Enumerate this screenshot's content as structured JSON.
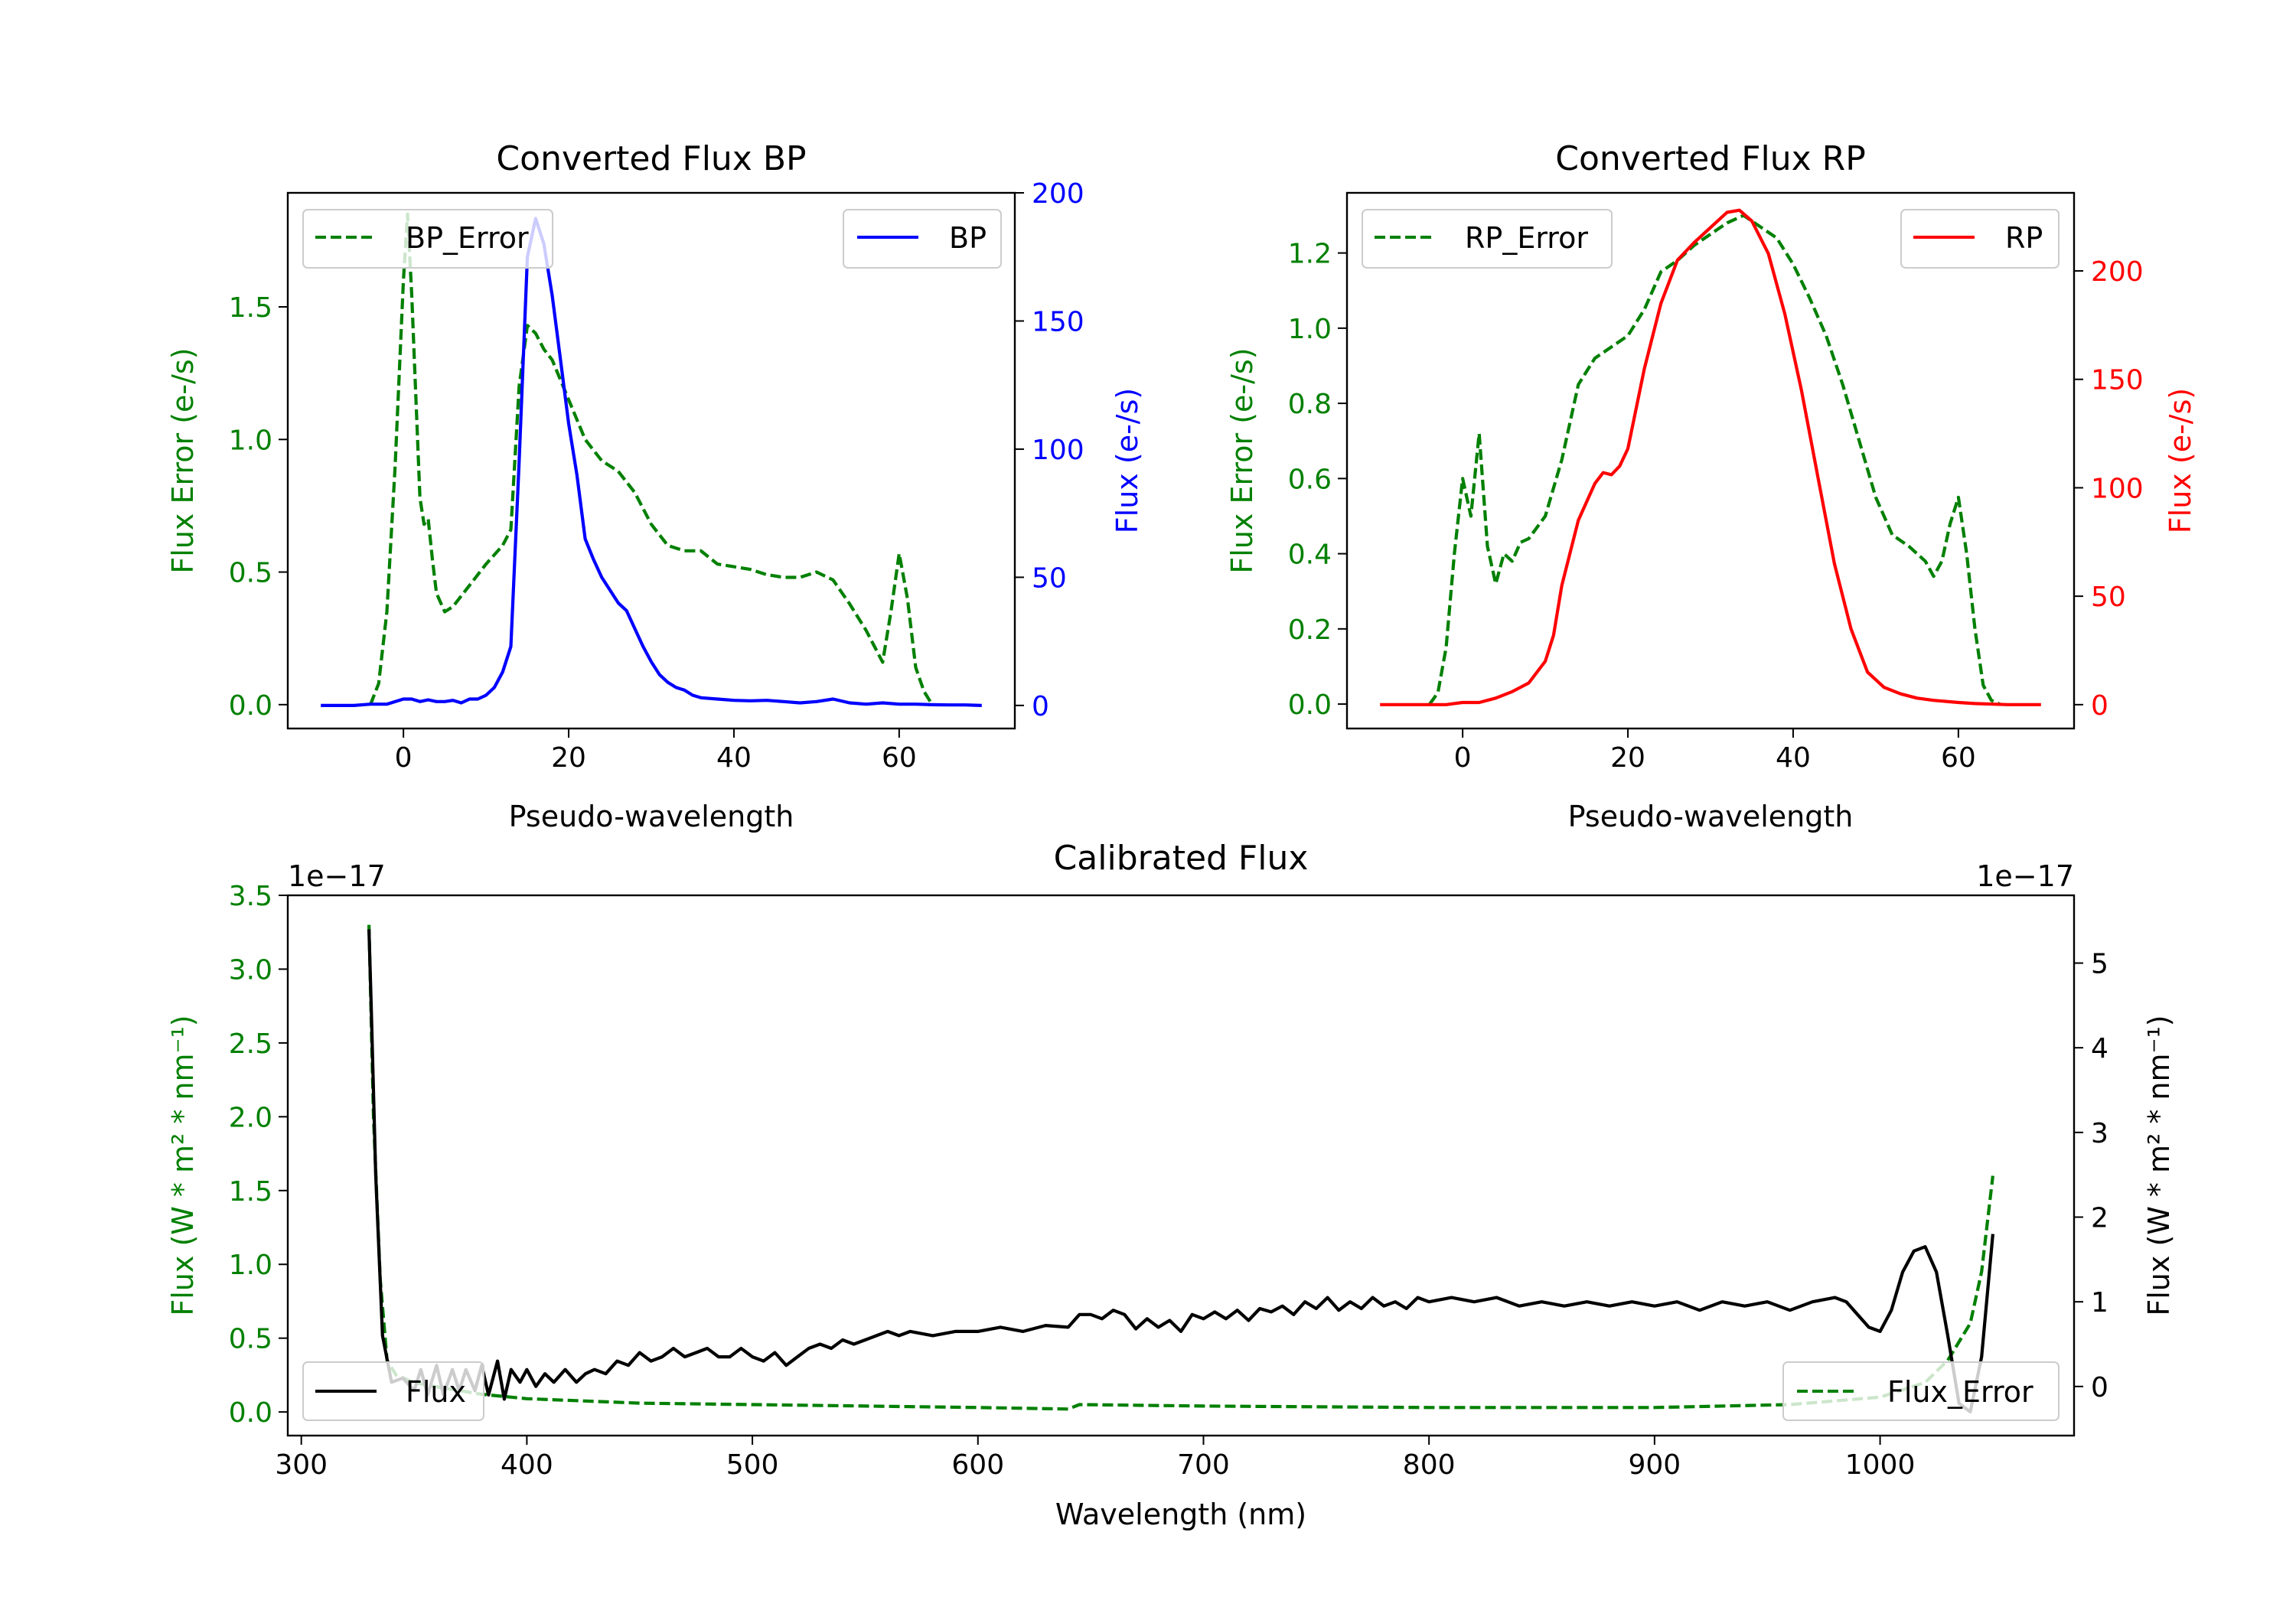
{
  "chart_data": [
    {
      "type": "line",
      "title": "Converted Flux BP",
      "xlabel": "Pseudo-wavelength",
      "xlim": [
        -14,
        74
      ],
      "xticks": [
        0,
        20,
        40,
        60
      ],
      "ylabel_left": "Flux Error (e-/s)",
      "ylim_left": [
        -0.09,
        1.93
      ],
      "yticks_left": [
        0.0,
        0.5,
        1.0,
        1.5
      ],
      "ylabel_right": "Flux (e-/s)",
      "ylim_right": [
        -9,
        200
      ],
      "yticks_right": [
        0,
        50,
        100,
        150,
        200
      ],
      "left_color": "#008000",
      "right_color": "#0000ff",
      "series": [
        {
          "name": "BP_Error",
          "axis": "left",
          "style": "dashed",
          "color": "#008000",
          "x": [
            -4,
            -3,
            -2,
            -1,
            0,
            0.5,
            1,
            2,
            2.5,
            3,
            3.5,
            4,
            5,
            6,
            8,
            10,
            12,
            13,
            14,
            15,
            16,
            17,
            18,
            20,
            22,
            24,
            26,
            28,
            30,
            32,
            34,
            36,
            38,
            40,
            42,
            44,
            46,
            48,
            50,
            52,
            54,
            56,
            57,
            58,
            59,
            60,
            61,
            62,
            63,
            64
          ],
          "values": [
            0.0,
            0.08,
            0.35,
            0.9,
            1.6,
            1.85,
            1.55,
            0.78,
            0.68,
            0.7,
            0.55,
            0.42,
            0.35,
            0.37,
            0.45,
            0.53,
            0.6,
            0.66,
            1.2,
            1.43,
            1.4,
            1.34,
            1.3,
            1.15,
            1.0,
            0.92,
            0.88,
            0.8,
            0.68,
            0.6,
            0.58,
            0.58,
            0.53,
            0.52,
            0.51,
            0.49,
            0.48,
            0.48,
            0.5,
            0.47,
            0.38,
            0.28,
            0.22,
            0.16,
            0.35,
            0.57,
            0.4,
            0.14,
            0.05,
            0.0
          ]
        },
        {
          "name": "BP",
          "axis": "right",
          "style": "solid",
          "color": "#0000ff",
          "x": [
            -10,
            -6,
            -4,
            -2,
            0,
            1,
            2,
            3,
            4,
            5,
            6,
            7,
            8,
            9,
            10,
            11,
            12,
            13,
            14,
            15,
            16,
            17,
            18,
            19,
            20,
            21,
            22,
            23,
            24,
            25,
            26,
            27,
            28,
            29,
            30,
            31,
            32,
            33,
            34,
            35,
            36,
            38,
            40,
            42,
            44,
            46,
            48,
            50,
            52,
            54,
            56,
            58,
            60,
            62,
            64,
            66,
            68,
            70
          ],
          "values": [
            0,
            0,
            0.5,
            0.5,
            2.5,
            2.5,
            1.5,
            2.2,
            1.5,
            1.5,
            2,
            1,
            2.5,
            2.5,
            4,
            7,
            13,
            23,
            95,
            175,
            190,
            180,
            160,
            135,
            110,
            90,
            65,
            57,
            50,
            45,
            40,
            37,
            30,
            23,
            17,
            12,
            9,
            7,
            6,
            4,
            3,
            2.5,
            2,
            1.8,
            2,
            1.5,
            1,
            1.5,
            2.5,
            1,
            0.5,
            1,
            0.5,
            0.5,
            0.3,
            0.2,
            0.2,
            0
          ]
        }
      ],
      "legend": [
        {
          "label": "BP_Error",
          "placement": "upper-left"
        },
        {
          "label": "BP",
          "placement": "upper-right"
        }
      ]
    },
    {
      "type": "line",
      "title": "Converted Flux RP",
      "xlabel": "Pseudo-wavelength",
      "xlim": [
        -14,
        74
      ],
      "xticks": [
        0,
        20,
        40,
        60
      ],
      "ylabel_left": "Flux Error (e-/s)",
      "ylim_left": [
        -0.065,
        1.36
      ],
      "yticks_left": [
        0.0,
        0.2,
        0.4,
        0.6,
        0.8,
        1.0,
        1.2
      ],
      "ylabel_right": "Flux (e-/s)",
      "ylim_right": [
        -11,
        236
      ],
      "yticks_right": [
        0,
        50,
        100,
        150,
        200
      ],
      "left_color": "#008000",
      "right_color": "#ff0000",
      "series": [
        {
          "name": "RP_Error",
          "axis": "left",
          "style": "dashed",
          "color": "#008000",
          "x": [
            -4,
            -3,
            -2,
            -1,
            0,
            1,
            2,
            3,
            4,
            5,
            6,
            7,
            8,
            10,
            12,
            14,
            16,
            18,
            20,
            22,
            24,
            26,
            28,
            30,
            32,
            34,
            36,
            38,
            40,
            42,
            44,
            46,
            48,
            50,
            52,
            54,
            56,
            57,
            58,
            59,
            60,
            61,
            62,
            63,
            64,
            65
          ],
          "values": [
            0.0,
            0.03,
            0.15,
            0.4,
            0.6,
            0.5,
            0.72,
            0.42,
            0.32,
            0.4,
            0.38,
            0.43,
            0.44,
            0.5,
            0.65,
            0.85,
            0.92,
            0.95,
            0.98,
            1.05,
            1.15,
            1.18,
            1.22,
            1.25,
            1.28,
            1.3,
            1.27,
            1.24,
            1.17,
            1.08,
            0.98,
            0.85,
            0.7,
            0.55,
            0.45,
            0.42,
            0.38,
            0.34,
            0.38,
            0.48,
            0.55,
            0.4,
            0.2,
            0.05,
            0.01,
            0.0
          ]
        },
        {
          "name": "RP",
          "axis": "right",
          "style": "solid",
          "color": "#ff0000",
          "x": [
            -10,
            -6,
            -2,
            0,
            2,
            4,
            6,
            8,
            10,
            11,
            12,
            14,
            16,
            17,
            18,
            19,
            20,
            22,
            24,
            26,
            28,
            30,
            32,
            33.5,
            35,
            37,
            39,
            41,
            43,
            45,
            47,
            49,
            51,
            53,
            55,
            57,
            60,
            62,
            66,
            70
          ],
          "values": [
            0,
            0,
            0,
            1,
            1,
            3,
            6,
            10,
            20,
            32,
            55,
            85,
            102,
            107,
            106,
            110,
            118,
            155,
            185,
            205,
            213,
            220,
            227,
            228,
            223,
            208,
            180,
            145,
            105,
            65,
            35,
            15,
            8,
            5,
            3,
            2,
            1,
            0.5,
            0,
            0
          ]
        }
      ],
      "legend": [
        {
          "label": "RP_Error",
          "placement": "upper-left"
        },
        {
          "label": "RP",
          "placement": "upper-right"
        }
      ]
    },
    {
      "type": "line",
      "title": "Calibrated Flux",
      "xlabel": "Wavelength (nm)",
      "xlim": [
        294,
        1086
      ],
      "xticks": [
        300,
        400,
        500,
        600,
        700,
        800,
        900,
        1000
      ],
      "ylabel_left": "Flux (W * m² * nm⁻¹)",
      "ylim_left": [
        -0.16,
        3.5
      ],
      "yticks_left": [
        0.0,
        0.5,
        1.0,
        1.5,
        2.0,
        2.5,
        3.0,
        3.5
      ],
      "left_offset_text": "1e−17",
      "ylabel_right": "Flux (W * m² * nm⁻¹)",
      "ylim_right": [
        -0.58,
        5.8
      ],
      "yticks_right": [
        0,
        1,
        2,
        3,
        4,
        5
      ],
      "right_offset_text": "1e−17",
      "left_color": "#008000",
      "right_color": "#000000",
      "series": [
        {
          "name": "Flux_Error",
          "axis": "left",
          "style": "dashed",
          "color": "#008000",
          "x": [
            330,
            332,
            335,
            338,
            342,
            350,
            360,
            380,
            400,
            450,
            500,
            550,
            600,
            640,
            645,
            700,
            800,
            900,
            960,
            1000,
            1020,
            1030,
            1040,
            1045,
            1050
          ],
          "values": [
            3.3,
            2.0,
            0.9,
            0.35,
            0.25,
            0.2,
            0.17,
            0.12,
            0.09,
            0.06,
            0.05,
            0.04,
            0.03,
            0.02,
            0.05,
            0.04,
            0.03,
            0.03,
            0.05,
            0.1,
            0.2,
            0.35,
            0.6,
            0.95,
            1.6
          ]
        },
        {
          "name": "Flux",
          "axis": "right",
          "style": "solid",
          "color": "#000000",
          "x": [
            330,
            331,
            333,
            336,
            340,
            345,
            350,
            353,
            356,
            360,
            363,
            367,
            370,
            373,
            377,
            380,
            383,
            387,
            390,
            393,
            397,
            400,
            404,
            408,
            412,
            417,
            422,
            426,
            430,
            435,
            440,
            445,
            450,
            455,
            460,
            465,
            470,
            475,
            480,
            485,
            490,
            495,
            500,
            505,
            510,
            515,
            520,
            525,
            530,
            535,
            540,
            545,
            550,
            555,
            560,
            565,
            570,
            580,
            590,
            600,
            610,
            620,
            630,
            640,
            645,
            650,
            655,
            660,
            665,
            670,
            675,
            680,
            685,
            690,
            695,
            700,
            705,
            710,
            715,
            720,
            725,
            730,
            735,
            740,
            745,
            750,
            755,
            760,
            765,
            770,
            775,
            780,
            785,
            790,
            795,
            800,
            810,
            820,
            830,
            840,
            850,
            860,
            870,
            880,
            890,
            900,
            910,
            920,
            930,
            940,
            950,
            960,
            970,
            980,
            985,
            990,
            995,
            1000,
            1005,
            1010,
            1015,
            1020,
            1025,
            1030,
            1035,
            1040,
            1045,
            1050
          ],
          "values": [
            5.4,
            4.5,
            2.5,
            0.6,
            0.05,
            0.1,
            -0.05,
            0.2,
            -0.1,
            0.25,
            -0.1,
            0.2,
            -0.05,
            0.2,
            -0.05,
            0.25,
            -0.1,
            0.3,
            -0.15,
            0.2,
            0.05,
            0.2,
            0.0,
            0.15,
            0.05,
            0.2,
            0.05,
            0.15,
            0.2,
            0.15,
            0.3,
            0.25,
            0.4,
            0.3,
            0.35,
            0.45,
            0.35,
            0.4,
            0.45,
            0.35,
            0.35,
            0.45,
            0.35,
            0.3,
            0.4,
            0.25,
            0.35,
            0.45,
            0.5,
            0.45,
            0.55,
            0.5,
            0.55,
            0.6,
            0.65,
            0.6,
            0.65,
            0.6,
            0.65,
            0.65,
            0.7,
            0.65,
            0.72,
            0.7,
            0.85,
            0.85,
            0.8,
            0.9,
            0.85,
            0.68,
            0.8,
            0.7,
            0.78,
            0.65,
            0.85,
            0.8,
            0.88,
            0.8,
            0.9,
            0.78,
            0.92,
            0.88,
            0.95,
            0.85,
            1.0,
            0.92,
            1.05,
            0.9,
            1.0,
            0.92,
            1.05,
            0.95,
            1.0,
            0.92,
            1.05,
            1.0,
            1.05,
            1.0,
            1.05,
            0.95,
            1.0,
            0.95,
            1.0,
            0.95,
            1.0,
            0.95,
            1.0,
            0.9,
            1.0,
            0.95,
            1.0,
            0.9,
            1.0,
            1.05,
            1.0,
            0.85,
            0.7,
            0.65,
            0.9,
            1.35,
            1.6,
            1.65,
            1.35,
            0.6,
            -0.2,
            -0.3,
            0.35,
            1.8
          ]
        }
      ],
      "legend": [
        {
          "label": "Flux",
          "placement": "lower-left"
        },
        {
          "label": "Flux_Error",
          "placement": "lower-right"
        }
      ]
    }
  ]
}
